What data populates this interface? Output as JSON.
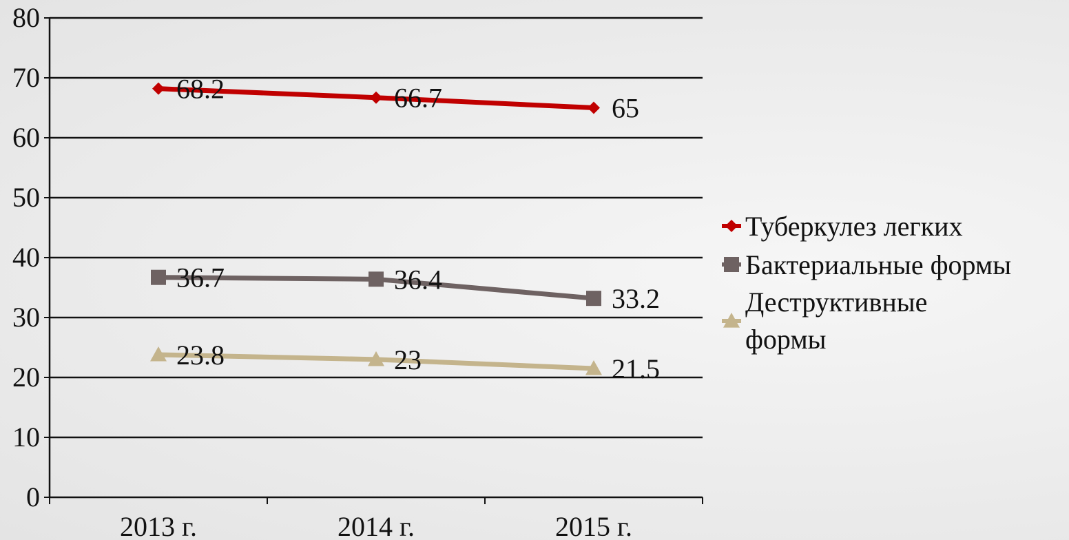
{
  "chart_data": {
    "type": "line",
    "categories": [
      "2013 г.",
      "2014 г.",
      "2015 г."
    ],
    "ylim": [
      0,
      80
    ],
    "yticks": [
      0,
      10,
      20,
      30,
      40,
      50,
      60,
      70,
      80
    ],
    "grid": true,
    "legend_position": "right",
    "series": [
      {
        "name": "Туберкулез легких",
        "values": [
          68.2,
          66.7,
          65
        ],
        "labels": [
          "68.2",
          "66.7",
          "65"
        ],
        "color": "#c00000",
        "marker": "diamond"
      },
      {
        "name": "Бактериальные формы",
        "values": [
          36.7,
          36.4,
          33.2
        ],
        "labels": [
          "36.7",
          "36.4",
          "33.2"
        ],
        "color": "#6e6262",
        "marker": "square"
      },
      {
        "name": "Деструктивные формы",
        "legend_lines": [
          "Деструктивные",
          "формы"
        ],
        "values": [
          23.8,
          23,
          21.5
        ],
        "labels": [
          "23.8",
          "23",
          "21.5"
        ],
        "color": "#c4b48c",
        "marker": "triangle"
      }
    ]
  }
}
